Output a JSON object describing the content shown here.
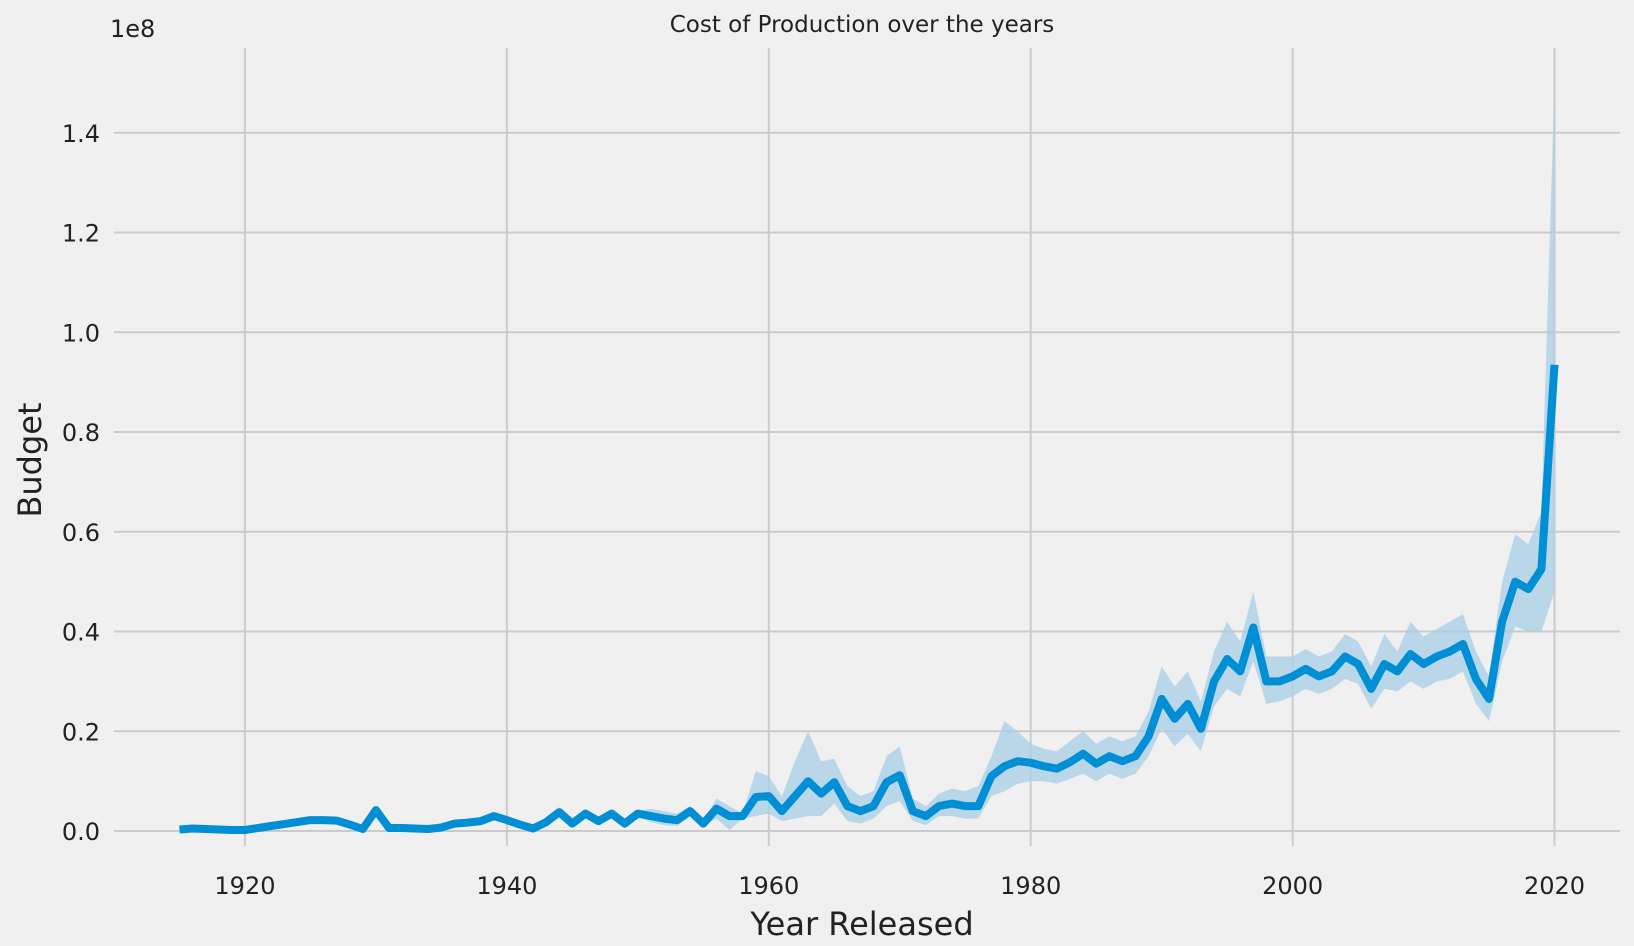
{
  "chart_data": {
    "type": "line",
    "title": "Cost of Production over the years",
    "xlabel": "Year Released",
    "ylabel": "Budget",
    "y_offset_label": "1e8",
    "y_multiplier": 100000000,
    "xlim": [
      1910,
      2025
    ],
    "ylim": [
      -0.03,
      1.57
    ],
    "x_ticks": [
      1920,
      1940,
      1960,
      1980,
      2000,
      2020
    ],
    "x_tick_labels": [
      "1920",
      "1940",
      "1960",
      "1980",
      "2000",
      "2020"
    ],
    "y_ticks": [
      0.0,
      0.2,
      0.4,
      0.6,
      0.8,
      1.0,
      1.2,
      1.4
    ],
    "y_tick_labels": [
      "0.0",
      "0.2",
      "0.4",
      "0.6",
      "0.8",
      "1.0",
      "1.2",
      "1.4"
    ],
    "grid": true,
    "style": "fivethirtyeight",
    "series": [
      {
        "color": "#008fd5",
        "band_color": "#a7cfe5",
        "x": [
          1915,
          1916,
          1917,
          1918,
          1919,
          1920,
          1921,
          1922,
          1923,
          1924,
          1925,
          1926,
          1927,
          1928,
          1929,
          1930,
          1931,
          1932,
          1933,
          1934,
          1935,
          1936,
          1937,
          1938,
          1939,
          1940,
          1941,
          1942,
          1943,
          1944,
          1945,
          1946,
          1947,
          1948,
          1949,
          1950,
          1951,
          1952,
          1953,
          1954,
          1955,
          1956,
          1957,
          1958,
          1959,
          1960,
          1961,
          1962,
          1963,
          1964,
          1965,
          1966,
          1967,
          1968,
          1969,
          1970,
          1971,
          1972,
          1973,
          1974,
          1975,
          1976,
          1977,
          1978,
          1979,
          1980,
          1981,
          1982,
          1983,
          1984,
          1985,
          1986,
          1987,
          1988,
          1989,
          1990,
          1991,
          1992,
          1993,
          1994,
          1995,
          1996,
          1997,
          1998,
          1999,
          2000,
          2001,
          2002,
          2003,
          2004,
          2005,
          2006,
          2007,
          2008,
          2009,
          2010,
          2011,
          2012,
          2013,
          2014,
          2015,
          2016,
          2017,
          2018,
          2019,
          2020
        ],
        "y": [
          0.003,
          0.005,
          0.004,
          0.003,
          0.002,
          0.002,
          0.006,
          0.01,
          0.014,
          0.018,
          0.022,
          0.022,
          0.021,
          0.013,
          0.004,
          0.042,
          0.006,
          0.006,
          0.005,
          0.004,
          0.007,
          0.015,
          0.017,
          0.02,
          0.03,
          0.022,
          0.013,
          0.005,
          0.018,
          0.038,
          0.015,
          0.035,
          0.02,
          0.035,
          0.015,
          0.035,
          0.03,
          0.025,
          0.022,
          0.04,
          0.015,
          0.045,
          0.03,
          0.03,
          0.068,
          0.07,
          0.04,
          0.07,
          0.1,
          0.075,
          0.098,
          0.05,
          0.04,
          0.05,
          0.098,
          0.112,
          0.04,
          0.03,
          0.05,
          0.055,
          0.05,
          0.05,
          0.11,
          0.13,
          0.14,
          0.137,
          0.13,
          0.125,
          0.138,
          0.155,
          0.135,
          0.15,
          0.14,
          0.15,
          0.19,
          0.265,
          0.225,
          0.255,
          0.205,
          0.3,
          0.345,
          0.32,
          0.408,
          0.3,
          0.3,
          0.31,
          0.325,
          0.31,
          0.32,
          0.35,
          0.335,
          0.285,
          0.335,
          0.32,
          0.355,
          0.335,
          0.35,
          0.36,
          0.375,
          0.305,
          0.265,
          0.42,
          0.5,
          0.485,
          0.525,
          0.935
        ],
        "ci_upper": [
          0.003,
          0.005,
          0.004,
          0.003,
          0.002,
          0.002,
          0.006,
          0.01,
          0.014,
          0.018,
          0.022,
          0.022,
          0.021,
          0.013,
          0.004,
          0.042,
          0.006,
          0.006,
          0.005,
          0.004,
          0.007,
          0.015,
          0.017,
          0.02,
          0.03,
          0.022,
          0.013,
          0.005,
          0.018,
          0.04,
          0.017,
          0.037,
          0.022,
          0.038,
          0.018,
          0.04,
          0.045,
          0.04,
          0.035,
          0.05,
          0.02,
          0.065,
          0.05,
          0.035,
          0.12,
          0.11,
          0.07,
          0.14,
          0.2,
          0.14,
          0.145,
          0.09,
          0.07,
          0.08,
          0.15,
          0.17,
          0.065,
          0.05,
          0.075,
          0.085,
          0.08,
          0.09,
          0.15,
          0.22,
          0.2,
          0.175,
          0.165,
          0.16,
          0.18,
          0.2,
          0.175,
          0.19,
          0.18,
          0.19,
          0.24,
          0.33,
          0.29,
          0.32,
          0.26,
          0.36,
          0.42,
          0.38,
          0.48,
          0.35,
          0.35,
          0.35,
          0.365,
          0.35,
          0.36,
          0.395,
          0.38,
          0.33,
          0.395,
          0.36,
          0.42,
          0.39,
          0.405,
          0.42,
          0.435,
          0.36,
          0.31,
          0.5,
          0.595,
          0.575,
          0.64,
          1.5
        ],
        "ci_lower": [
          0.003,
          0.005,
          0.004,
          0.003,
          0.002,
          0.002,
          0.006,
          0.01,
          0.014,
          0.018,
          0.022,
          0.022,
          0.021,
          0.013,
          0.004,
          0.042,
          0.006,
          0.006,
          0.005,
          0.004,
          0.007,
          0.015,
          0.017,
          0.02,
          0.03,
          0.022,
          0.013,
          0.005,
          0.016,
          0.036,
          0.013,
          0.033,
          0.018,
          0.032,
          0.012,
          0.03,
          0.018,
          0.012,
          0.01,
          0.03,
          0.01,
          0.025,
          0.002,
          0.025,
          0.03,
          0.035,
          0.02,
          0.025,
          0.03,
          0.03,
          0.055,
          0.02,
          0.015,
          0.025,
          0.05,
          0.06,
          0.02,
          0.012,
          0.03,
          0.03,
          0.025,
          0.025,
          0.07,
          0.08,
          0.095,
          0.1,
          0.1,
          0.095,
          0.105,
          0.115,
          0.1,
          0.115,
          0.105,
          0.115,
          0.15,
          0.205,
          0.17,
          0.195,
          0.16,
          0.25,
          0.285,
          0.27,
          0.34,
          0.255,
          0.26,
          0.27,
          0.285,
          0.275,
          0.285,
          0.305,
          0.295,
          0.245,
          0.285,
          0.28,
          0.3,
          0.285,
          0.3,
          0.305,
          0.32,
          0.255,
          0.22,
          0.34,
          0.41,
          0.4,
          0.4,
          0.48
        ]
      }
    ]
  }
}
